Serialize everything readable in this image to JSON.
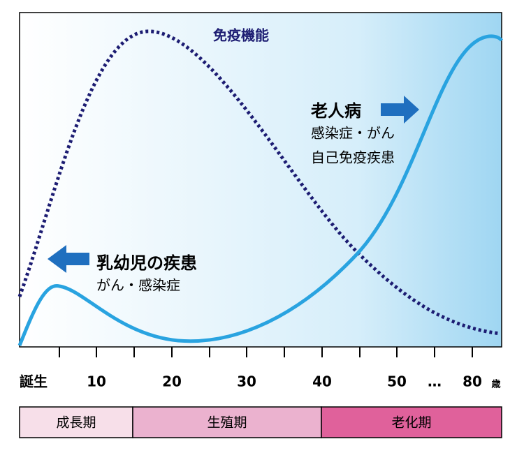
{
  "curve_label": "免疫機能",
  "elderly": {
    "title": "老人病",
    "lines": [
      "感染症・がん",
      "自己免疫疾患"
    ]
  },
  "infant": {
    "title": "乳幼児の疾患",
    "lines": [
      "がん・感染症"
    ]
  },
  "axis": {
    "labels": [
      "誕生",
      "10",
      "20",
      "30",
      "40",
      "50",
      "…",
      "80"
    ],
    "unit": "歳"
  },
  "stages": [
    "成長期",
    "生殖期",
    "老化期"
  ]
}
